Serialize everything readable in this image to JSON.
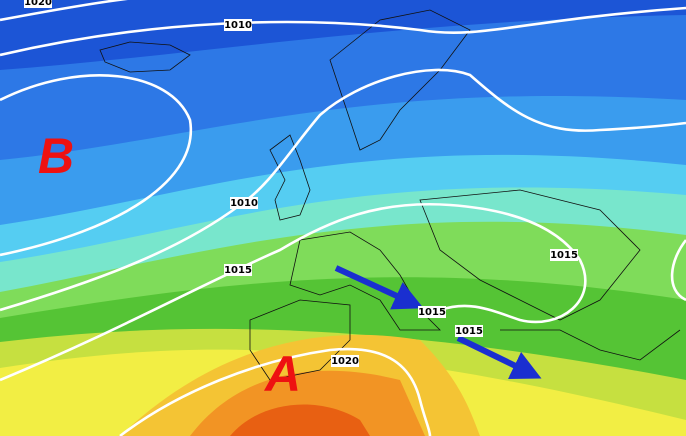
{
  "isobar_labels": [
    "1020",
    "1010",
    "1010",
    "1015",
    "1015",
    "1015",
    "1015",
    "1020"
  ],
  "pressure_centers": [
    {
      "label": "B"
    },
    {
      "label": "A"
    }
  ]
}
